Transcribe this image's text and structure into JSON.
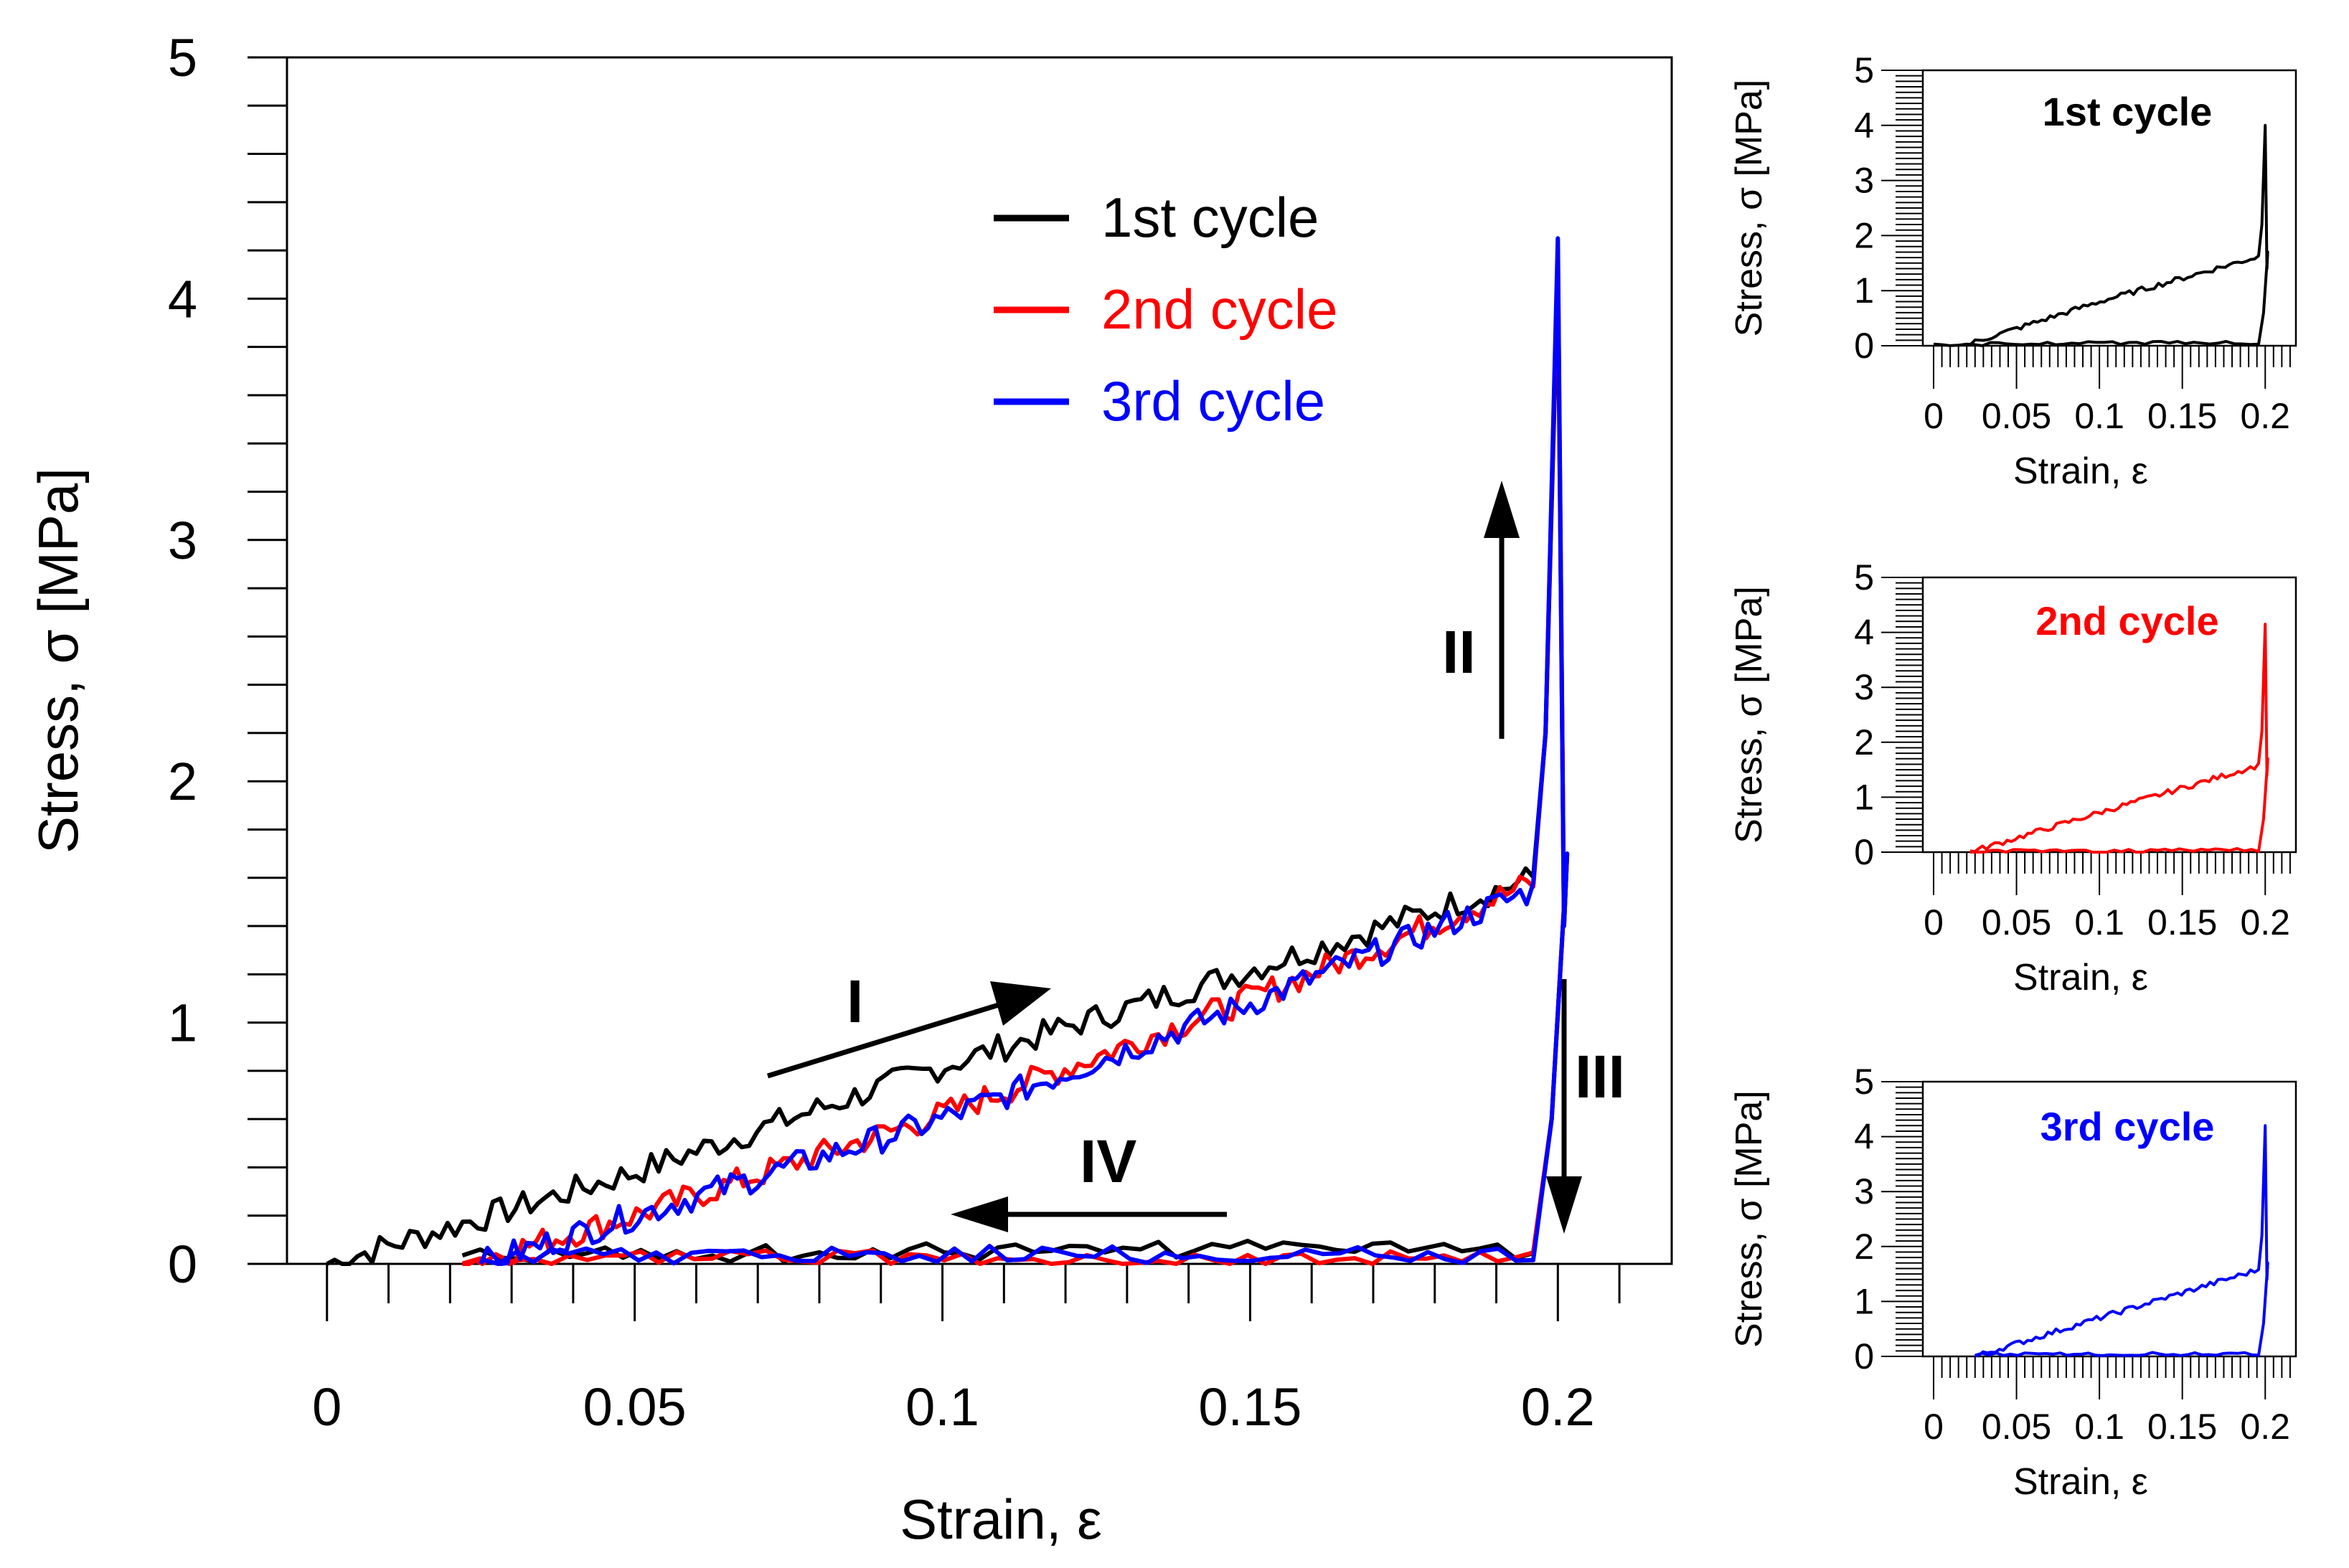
{
  "main_chart": {
    "xlabel": "Strain, ε",
    "ylabel": "Stress, σ  [MPa]",
    "xlim": [
      -0.0065,
      0.2185
    ],
    "ylim": [
      0,
      5
    ],
    "xticks": [
      "0",
      "0.05",
      "0.1",
      "0.15",
      "0.2"
    ],
    "yticks": [
      "0",
      "1",
      "2",
      "3",
      "4",
      "5"
    ],
    "legend": [
      {
        "label": "1st cycle",
        "color": "#000000"
      },
      {
        "label": "2nd cycle",
        "color": "#ff0000"
      },
      {
        "label": "3rd cycle",
        "color": "#0000ff"
      }
    ],
    "annotations": {
      "stage_1": "I",
      "stage_2": "II",
      "stage_3": "III",
      "stage_4": "IV"
    }
  },
  "small_charts": [
    {
      "title": "1st cycle",
      "color": "#000000",
      "xlabel": "Strain, ε",
      "ylabel": "Stress, σ  [MPa]",
      "xticks": [
        "0",
        "0.05",
        "0.1",
        "0.15",
        "0.2"
      ],
      "yticks": [
        "0",
        "1",
        "2",
        "3",
        "4",
        "5"
      ]
    },
    {
      "title": "2nd cycle",
      "color": "#ff0000",
      "xlabel": "Strain, ε",
      "ylabel": "Stress, σ  [MPa]",
      "xticks": [
        "0",
        "0.05",
        "0.1",
        "0.15",
        "0.2"
      ],
      "yticks": [
        "0",
        "1",
        "2",
        "3",
        "4",
        "5"
      ]
    },
    {
      "title": "3rd cycle",
      "color": "#0000ff",
      "xlabel": "Strain, ε",
      "ylabel": "Stress, σ  [MPa]",
      "xticks": [
        "0",
        "0.05",
        "0.1",
        "0.15",
        "0.2"
      ],
      "yticks": [
        "0",
        "1",
        "2",
        "3",
        "4",
        "5"
      ]
    }
  ],
  "chart_data": [
    {
      "type": "line",
      "title": "",
      "xlabel": "Strain, ε",
      "ylabel": "Stress, σ  [MPa]",
      "xlim": [
        -0.0065,
        0.2185
      ],
      "ylim": [
        0,
        5
      ],
      "series": [
        {
          "name": "1st cycle",
          "color": "#000000",
          "loading": {
            "x": [
              0,
              0.05,
              0.1,
              0.15,
              0.196
            ],
            "y": [
              0,
              0.38,
              0.82,
              1.22,
              1.6
            ]
          },
          "peak": {
            "x": 0.2,
            "y": 4.1
          },
          "unloading": {
            "x": [
              0.196,
              0.15,
              0.1,
              0.05,
              0.022
            ],
            "y": [
              0.05,
              0.06,
              0.05,
              0.04,
              0.03
            ]
          }
        },
        {
          "name": "2nd cycle",
          "color": "#ff0000",
          "loading": {
            "x": [
              0.022,
              0.05,
              0.1,
              0.15,
              0.196
            ],
            "y": [
              0,
              0.2,
              0.62,
              1.1,
              1.58
            ]
          },
          "peak": {
            "x": 0.2,
            "y": 4.2
          },
          "unloading": {
            "x": [
              0.196,
              0.15,
              0.1,
              0.05,
              0.022
            ],
            "y": [
              0.03,
              0.02,
              0.02,
              0.03,
              0.02
            ]
          }
        },
        {
          "name": "3rd cycle",
          "color": "#0000ff",
          "loading": {
            "x": [
              0.025,
              0.05,
              0.1,
              0.15,
              0.196
            ],
            "y": [
              0,
              0.2,
              0.6,
              1.08,
              1.55
            ]
          },
          "peak": {
            "x": 0.2,
            "y": 4.25
          },
          "unloading": {
            "x": [
              0.196,
              0.15,
              0.1,
              0.05,
              0.025
            ],
            "y": [
              0.04,
              0.04,
              0.04,
              0.03,
              0.03
            ]
          }
        }
      ]
    },
    {
      "type": "line",
      "title": "1st cycle",
      "xlabel": "Strain, ε",
      "ylabel": "Stress, σ  [MPa]",
      "xlim": [
        -0.0065,
        0.2185
      ],
      "ylim": [
        0,
        5
      ],
      "series": [
        {
          "name": "1st cycle",
          "color": "#000000",
          "loading": {
            "x": [
              0.02,
              0.1,
              0.196
            ],
            "y": [
              0.02,
              0.8,
              1.62
            ]
          },
          "peak": {
            "x": 0.2,
            "y": 4.0
          },
          "unloading": {
            "x": [
              0.196,
              0.1,
              0.0
            ],
            "y": [
              0.05,
              0.05,
              0.02
            ]
          }
        }
      ]
    },
    {
      "type": "line",
      "title": "2nd cycle",
      "xlabel": "Strain, ε",
      "ylabel": "Stress, σ  [MPa]",
      "xlim": [
        -0.0065,
        0.2185
      ],
      "ylim": [
        0,
        5
      ],
      "series": [
        {
          "name": "2nd cycle",
          "color": "#ff0000",
          "loading": {
            "x": [
              0.022,
              0.1,
              0.196
            ],
            "y": [
              0.0,
              0.72,
              1.58
            ]
          },
          "peak": {
            "x": 0.2,
            "y": 4.15
          },
          "unloading": {
            "x": [
              0.196,
              0.1,
              0.022
            ],
            "y": [
              0.04,
              0.02,
              0.02
            ]
          }
        }
      ]
    },
    {
      "type": "line",
      "title": "3rd cycle",
      "xlabel": "Strain, ε",
      "ylabel": "Stress, σ  [MPa]",
      "xlim": [
        -0.0065,
        0.2185
      ],
      "ylim": [
        0,
        5
      ],
      "series": [
        {
          "name": "3rd cycle",
          "color": "#0000ff",
          "loading": {
            "x": [
              0.025,
              0.1,
              0.196
            ],
            "y": [
              0.0,
              0.7,
              1.58
            ]
          },
          "peak": {
            "x": 0.2,
            "y": 4.2
          },
          "unloading": {
            "x": [
              0.196,
              0.1,
              0.025
            ],
            "y": [
              0.05,
              0.04,
              0.03
            ]
          }
        }
      ]
    }
  ]
}
